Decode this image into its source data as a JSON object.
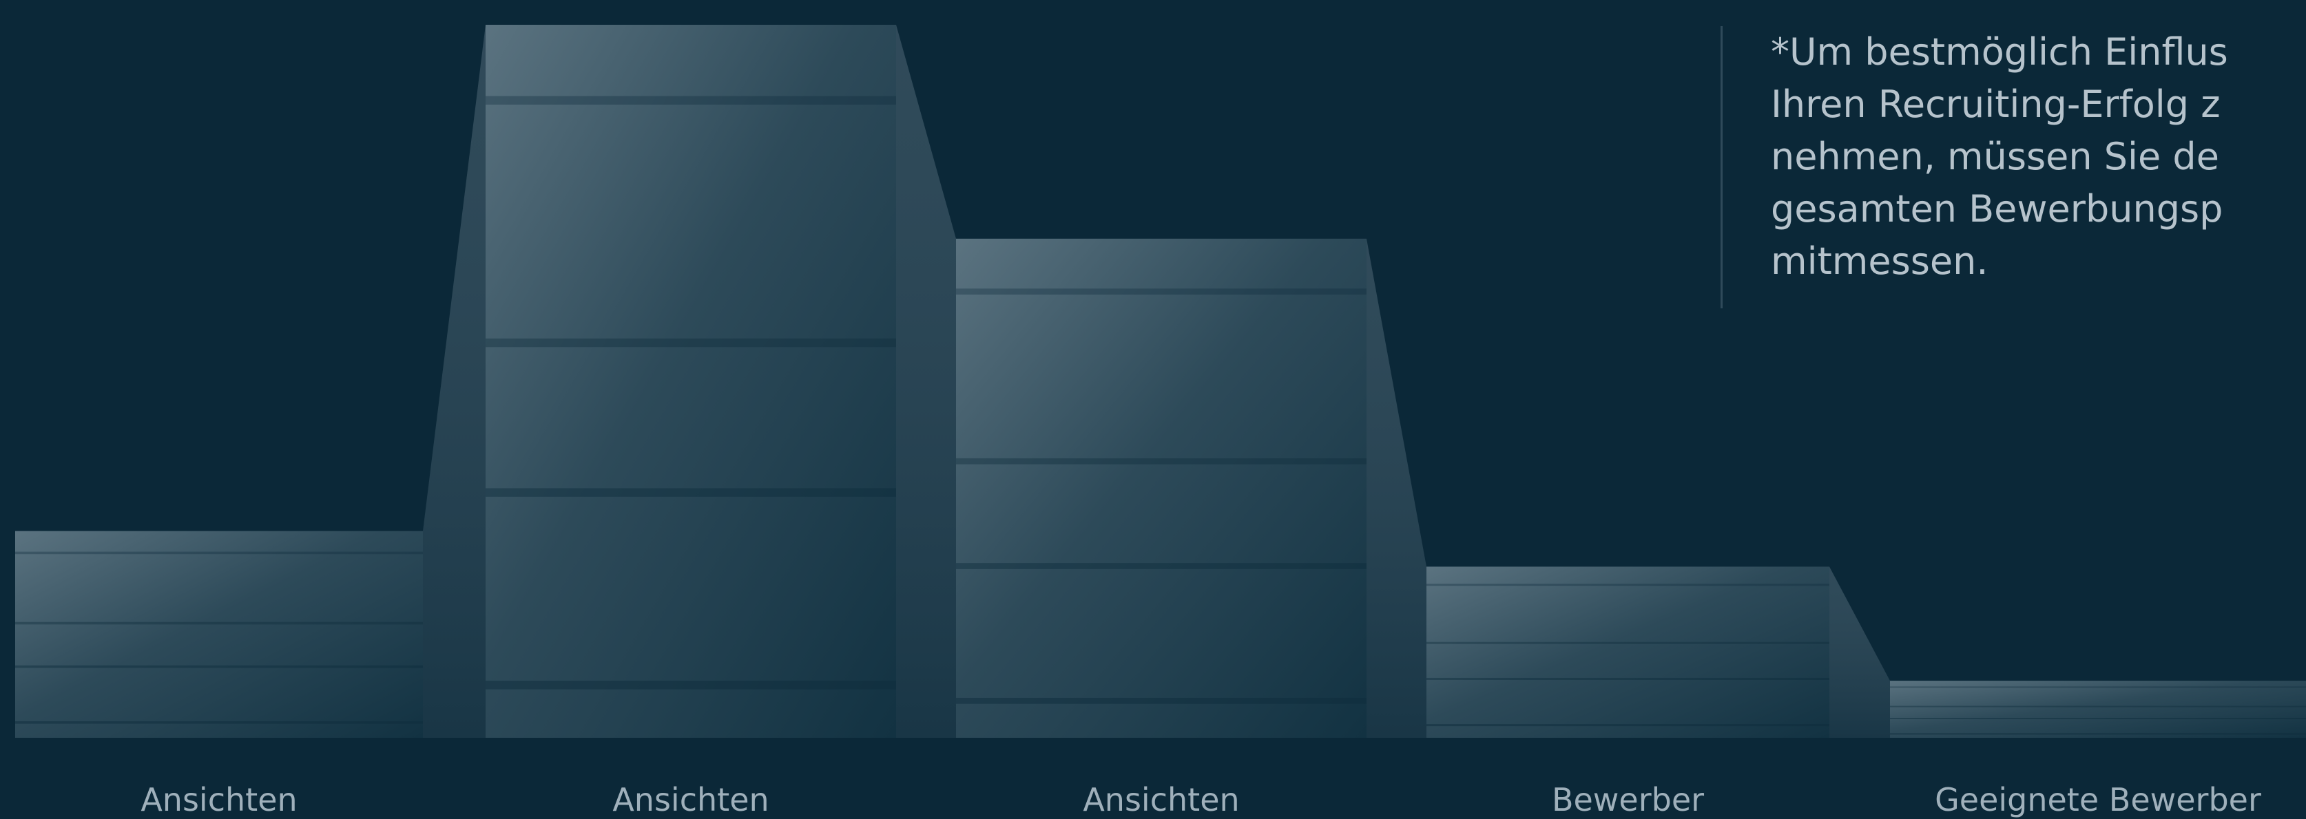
{
  "note": {
    "text": "*Um bestmöglich Einflus\nIhren Recruiting-Erfolg z\nnehmen, müssen Sie de\ngesamten Bewerbungsp\nmitmessen."
  },
  "chart_data": {
    "type": "bar",
    "categories": [
      "Ansichten",
      "Ansichten",
      "Ansichten",
      "Bewerber",
      "Geeignete Bewerber"
    ],
    "values": [
      29,
      100,
      70,
      24,
      8
    ],
    "ylim": [
      0,
      100
    ],
    "grid": false,
    "legend": "none",
    "colors": {
      "background": "#0b2838",
      "bar_light": "#5f7784",
      "bar_dark": "#123242",
      "label": "#9fb0bb",
      "note_text": "#b6c3cc",
      "note_rule": "#2f4a5a"
    }
  }
}
